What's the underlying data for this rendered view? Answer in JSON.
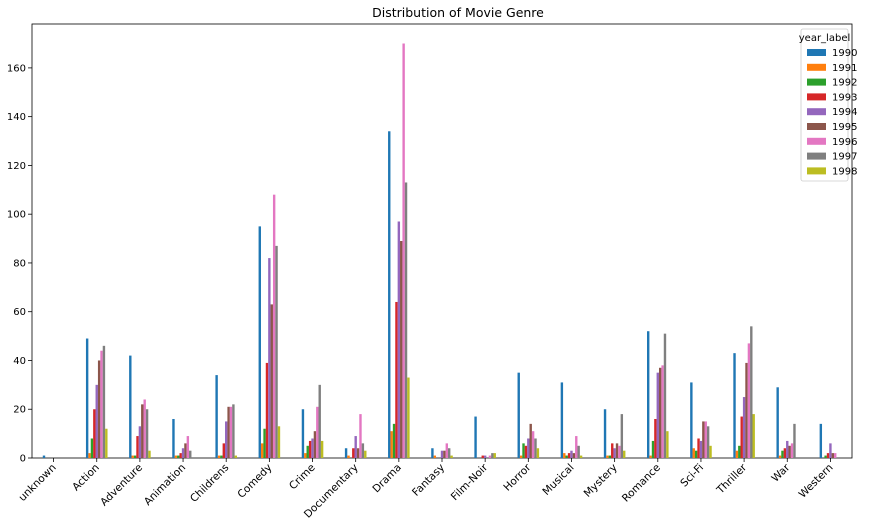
{
  "chart_data": {
    "type": "bar",
    "title": "Distribution of Movie Genre",
    "xlabel": "",
    "ylabel": "",
    "ylim": [
      0,
      178
    ],
    "yticks": [
      0,
      20,
      40,
      60,
      80,
      100,
      120,
      140,
      160
    ],
    "legend": {
      "title": "year_label",
      "placement": "top-right"
    },
    "categories": [
      "unknown",
      "Action",
      "Adventure",
      "Animation",
      "Childrens",
      "Comedy",
      "Crime",
      "Documentary",
      "Drama",
      "Fantasy",
      "Film-Noir",
      "Horror",
      "Musical",
      "Mystery",
      "Romance",
      "Sci-Fi",
      "Thriller",
      "War",
      "Western"
    ],
    "series": [
      {
        "name": "1990",
        "color": "#1f77b4",
        "values": [
          1,
          49,
          42,
          16,
          34,
          95,
          20,
          4,
          134,
          4,
          17,
          35,
          31,
          20,
          52,
          31,
          43,
          29,
          14
        ]
      },
      {
        "name": "1991",
        "color": "#ff7f0e",
        "values": [
          0,
          2,
          1,
          1,
          1,
          6,
          2,
          1,
          11,
          1,
          0,
          1,
          2,
          1,
          1,
          4,
          3,
          1,
          0
        ]
      },
      {
        "name": "1992",
        "color": "#2ca02c",
        "values": [
          0,
          8,
          1,
          1,
          1,
          12,
          5,
          0,
          14,
          0,
          0,
          6,
          1,
          1,
          7,
          3,
          5,
          3,
          1
        ]
      },
      {
        "name": "1993",
        "color": "#d62728",
        "values": [
          0,
          20,
          9,
          2,
          6,
          39,
          7,
          4,
          64,
          0,
          1,
          5,
          2,
          6,
          16,
          8,
          17,
          4,
          2
        ]
      },
      {
        "name": "1994",
        "color": "#9467bd",
        "values": [
          0,
          30,
          13,
          4,
          15,
          82,
          8,
          9,
          97,
          3,
          1,
          8,
          3,
          4,
          35,
          7,
          25,
          7,
          6
        ]
      },
      {
        "name": "1995",
        "color": "#8c564b",
        "values": [
          0,
          40,
          22,
          6,
          21,
          63,
          11,
          4,
          89,
          3,
          0,
          14,
          2,
          6,
          37,
          15,
          39,
          5,
          2
        ]
      },
      {
        "name": "1996",
        "color": "#e377c2",
        "values": [
          0,
          44,
          24,
          9,
          21,
          108,
          21,
          18,
          170,
          6,
          1,
          11,
          9,
          5,
          38,
          15,
          47,
          6,
          2
        ]
      },
      {
        "name": "1997",
        "color": "#7f7f7f",
        "values": [
          0,
          46,
          20,
          3,
          22,
          87,
          30,
          6,
          113,
          4,
          2,
          8,
          5,
          18,
          51,
          13,
          54,
          14,
          0
        ]
      },
      {
        "name": "1998",
        "color": "#bcbd22",
        "values": [
          0,
          12,
          3,
          0,
          1,
          13,
          7,
          3,
          33,
          1,
          2,
          4,
          1,
          3,
          11,
          5,
          18,
          0,
          0
        ]
      }
    ]
  }
}
